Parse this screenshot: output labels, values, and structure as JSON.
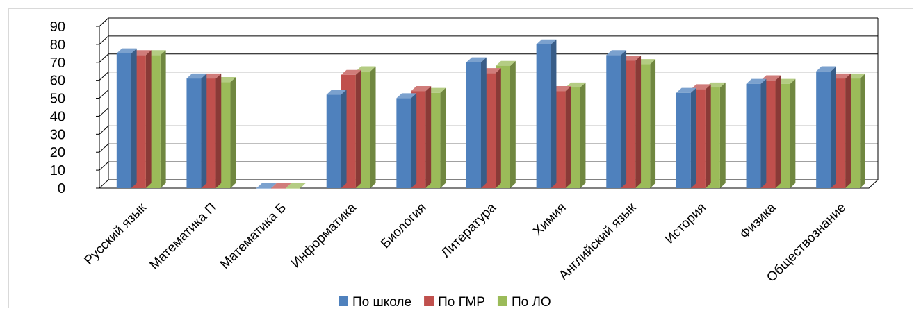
{
  "chart_data": {
    "type": "bar",
    "categories": [
      "Русский язык",
      "Математика П",
      "Математика Б",
      "Информатика",
      "Биология",
      "Литература",
      "Химия",
      "Английский язык",
      "История",
      "Физика",
      "Обществознание"
    ],
    "series": [
      {
        "name": "По школе",
        "color": "#4f81bd",
        "values": [
          75,
          61,
          0,
          52,
          50,
          70,
          80,
          74,
          53,
          58,
          65
        ]
      },
      {
        "name": "По ГМР",
        "color": "#c0504d",
        "values": [
          74,
          61,
          0,
          63,
          54,
          64,
          54,
          71,
          55,
          60,
          61
        ]
      },
      {
        "name": "По ЛО",
        "color": "#9bbb59",
        "values": [
          74,
          59,
          0,
          65,
          53,
          68,
          56,
          69,
          56,
          58,
          61
        ]
      }
    ],
    "ylim": [
      0,
      90
    ],
    "yticks": [
      0,
      10,
      20,
      30,
      40,
      50,
      60,
      70,
      80,
      90
    ],
    "grid": true,
    "legend": "bottom"
  }
}
